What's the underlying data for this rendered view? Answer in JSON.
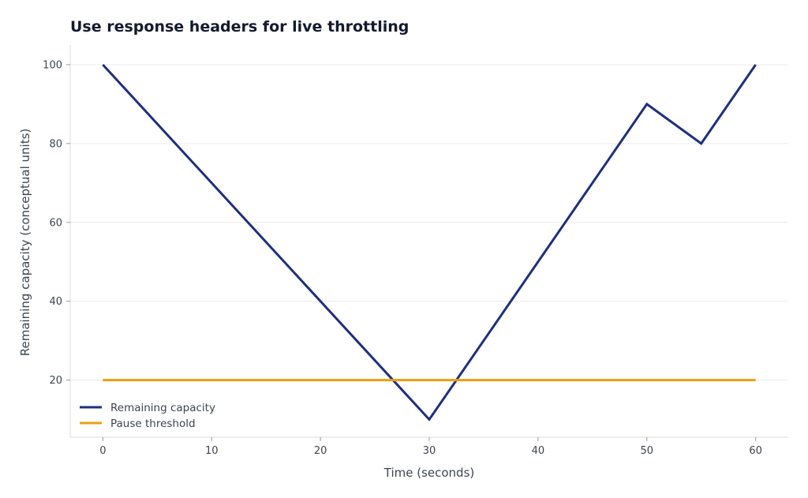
{
  "colors": {
    "background": "#ffffff",
    "grid": "#ececec",
    "axis": "#dcdcdc",
    "text": "#3d4352",
    "title": "#141a2e"
  },
  "chart_data": {
    "type": "line",
    "title": "Use response headers for live throttling",
    "xlabel": "Time (seconds)",
    "ylabel": "Remaining capacity (conceptual units)",
    "xlim": [
      -3,
      63
    ],
    "ylim": [
      5.5,
      105
    ],
    "xticks": [
      0,
      10,
      20,
      30,
      40,
      50,
      60
    ],
    "yticks": [
      20,
      40,
      60,
      80,
      100
    ],
    "grid": true,
    "legend_position": "bottom-left",
    "series": [
      {
        "name": "Remaining capacity",
        "color": "#1f2f7a",
        "x": [
          0,
          30,
          50,
          55,
          60
        ],
        "y": [
          100,
          10,
          90,
          80,
          100
        ]
      },
      {
        "name": "Pause threshold",
        "color": "#e8a010",
        "x": [
          0,
          60
        ],
        "y": [
          20,
          20
        ]
      }
    ]
  }
}
